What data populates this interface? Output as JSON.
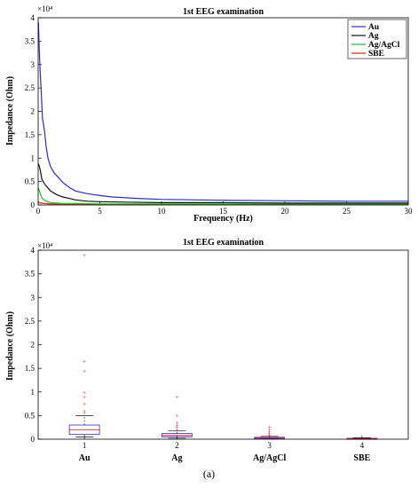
{
  "caption": "(a)",
  "chart_data": [
    {
      "type": "line",
      "title": "1st EEG examination",
      "xlabel": "Frequency (Hz)",
      "ylabel": "Impedance (Ohm)",
      "exponent_label": "×10⁴",
      "xlim": [
        0,
        30
      ],
      "ylim": [
        0,
        4
      ],
      "x_ticks": [
        "0",
        "5",
        "10",
        "15",
        "20",
        "25",
        "30"
      ],
      "y_ticks": [
        "0",
        "0.5",
        "1",
        "1.5",
        "2",
        "2.5",
        "3",
        "3.5",
        "4"
      ],
      "legend_position": "top-right",
      "series": [
        {
          "name": "Au",
          "color": "#2b2bd6",
          "x": [
            0.02,
            0.08,
            0.15,
            0.25,
            0.35,
            0.5,
            0.65,
            0.8,
            1.0,
            1.3,
            1.6,
            2.0,
            2.5,
            3.0,
            4.0,
            5.0,
            6.0,
            8.0,
            10.0,
            15.0,
            20.0,
            25.0,
            30.0
          ],
          "y": [
            3.9,
            3.4,
            2.9,
            2.4,
            1.85,
            1.6,
            1.25,
            1.0,
            0.82,
            0.68,
            0.6,
            0.48,
            0.38,
            0.3,
            0.24,
            0.2,
            0.17,
            0.14,
            0.12,
            0.1,
            0.09,
            0.08,
            0.08
          ]
        },
        {
          "name": "Ag",
          "color": "#111111",
          "x": [
            0.02,
            0.1,
            0.2,
            0.3,
            0.45,
            0.6,
            0.8,
            1.0,
            1.3,
            1.6,
            2.0,
            2.5,
            3.0,
            4.0,
            5.0,
            7.0,
            10.0,
            15.0,
            20.0,
            25.0,
            30.0
          ],
          "y": [
            0.88,
            0.82,
            0.7,
            0.55,
            0.48,
            0.42,
            0.36,
            0.3,
            0.25,
            0.21,
            0.17,
            0.14,
            0.11,
            0.08,
            0.07,
            0.06,
            0.05,
            0.05,
            0.04,
            0.04,
            0.04
          ]
        },
        {
          "name": "Ag/AgCl",
          "color": "#17c517",
          "x": [
            0.02,
            0.1,
            0.2,
            0.3,
            0.5,
            0.8,
            1.0,
            1.5,
            2.0,
            3.0,
            5.0,
            10.0,
            20.0,
            30.0
          ],
          "y": [
            0.36,
            0.3,
            0.22,
            0.15,
            0.1,
            0.07,
            0.05,
            0.04,
            0.03,
            0.03,
            0.02,
            0.02,
            0.02,
            0.02
          ]
        },
        {
          "name": "SBE",
          "color": "#e81c1c",
          "x": [
            0.02,
            0.2,
            0.5,
            1.0,
            2.0,
            5.0,
            10.0,
            20.0,
            30.0
          ],
          "y": [
            0.06,
            0.04,
            0.03,
            0.02,
            0.02,
            0.01,
            0.01,
            0.01,
            0.01
          ]
        }
      ]
    },
    {
      "type": "box",
      "title": "1st EEG examination",
      "ylabel": "Impedance (Ohm)",
      "exponent_label": "×10⁴",
      "ylim": [
        0,
        4
      ],
      "y_ticks": [
        "0",
        "0.5",
        "1",
        "1.5",
        "2",
        "2.5",
        "3",
        "3.5",
        "4"
      ],
      "x_ticks": [
        "1",
        "2",
        "3",
        "4"
      ],
      "categories": [
        "Au",
        "Ag",
        "Ag/AgCl",
        "SBE"
      ],
      "box_color": "#2b2bd6",
      "median_color": "#e81c1c",
      "whisker_color": "#111111",
      "boxes": [
        {
          "min": 0.05,
          "q1": 0.1,
          "median": 0.2,
          "q3": 0.3,
          "max": 0.5,
          "outliers": [
            0.55,
            0.6,
            0.75,
            0.9,
            1.0,
            1.45,
            1.65,
            3.9
          ]
        },
        {
          "min": 0.02,
          "q1": 0.05,
          "median": 0.08,
          "q3": 0.12,
          "max": 0.18,
          "outliers": [
            0.2,
            0.25,
            0.3,
            0.35,
            0.5,
            0.9
          ]
        },
        {
          "min": 0.01,
          "q1": 0.02,
          "median": 0.03,
          "q3": 0.04,
          "max": 0.06,
          "outliers": [
            0.08,
            0.12,
            0.16,
            0.2,
            0.26
          ]
        },
        {
          "min": 0.005,
          "q1": 0.01,
          "median": 0.015,
          "q3": 0.02,
          "max": 0.03,
          "outliers": []
        }
      ]
    }
  ]
}
